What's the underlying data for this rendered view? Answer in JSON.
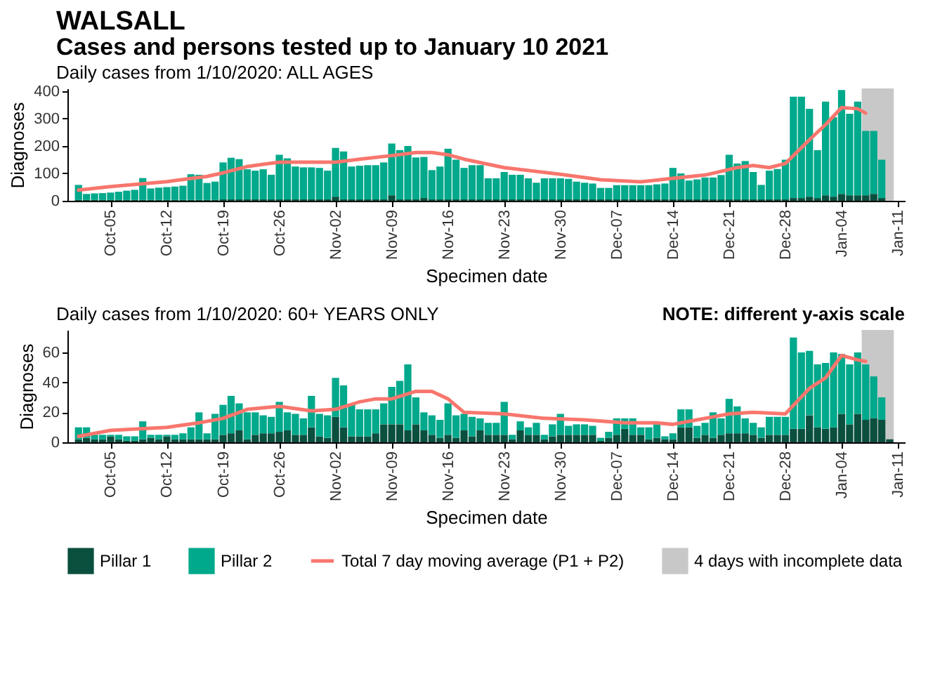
{
  "chart_data": [
    {
      "type": "bar",
      "title": "WALSALL",
      "subtitle": "Cases and persons tested up to January 10 2021",
      "annotations": [
        "Daily cases from 1/10/2020: ALL AGES"
      ],
      "xlabel": "Specimen date",
      "ylabel": "Diagnoses",
      "stacked": true,
      "x": [
        "2020-10-01",
        "2020-10-02",
        "2020-10-03",
        "2020-10-04",
        "2020-10-05",
        "2020-10-06",
        "2020-10-07",
        "2020-10-08",
        "2020-10-09",
        "2020-10-10",
        "2020-10-11",
        "2020-10-12",
        "2020-10-13",
        "2020-10-14",
        "2020-10-15",
        "2020-10-16",
        "2020-10-17",
        "2020-10-18",
        "2020-10-19",
        "2020-10-20",
        "2020-10-21",
        "2020-10-22",
        "2020-10-23",
        "2020-10-24",
        "2020-10-25",
        "2020-10-26",
        "2020-10-27",
        "2020-10-28",
        "2020-10-29",
        "2020-10-30",
        "2020-10-31",
        "2020-11-01",
        "2020-11-02",
        "2020-11-03",
        "2020-11-04",
        "2020-11-05",
        "2020-11-06",
        "2020-11-07",
        "2020-11-08",
        "2020-11-09",
        "2020-11-10",
        "2020-11-11",
        "2020-11-12",
        "2020-11-13",
        "2020-11-14",
        "2020-11-15",
        "2020-11-16",
        "2020-11-17",
        "2020-11-18",
        "2020-11-19",
        "2020-11-20",
        "2020-11-21",
        "2020-11-22",
        "2020-11-23",
        "2020-11-24",
        "2020-11-25",
        "2020-11-26",
        "2020-11-27",
        "2020-11-28",
        "2020-11-29",
        "2020-11-30",
        "2020-12-01",
        "2020-12-02",
        "2020-12-03",
        "2020-12-04",
        "2020-12-05",
        "2020-12-06",
        "2020-12-07",
        "2020-12-08",
        "2020-12-09",
        "2020-12-10",
        "2020-12-11",
        "2020-12-12",
        "2020-12-13",
        "2020-12-14",
        "2020-12-15",
        "2020-12-16",
        "2020-12-17",
        "2020-12-18",
        "2020-12-19",
        "2020-12-20",
        "2020-12-21",
        "2020-12-22",
        "2020-12-23",
        "2020-12-24",
        "2020-12-25",
        "2020-12-26",
        "2020-12-27",
        "2020-12-28",
        "2020-12-29",
        "2020-12-30",
        "2020-12-31",
        "2021-01-01",
        "2021-01-02",
        "2021-01-03",
        "2021-01-04",
        "2021-01-05",
        "2021-01-06",
        "2021-01-07",
        "2021-01-08",
        "2021-01-09"
      ],
      "legend": "bottom",
      "series": [
        {
          "name": "Pillar 1",
          "color": "#0b4f3f",
          "values": [
            3,
            3,
            3,
            3,
            3,
            3,
            3,
            3,
            3,
            3,
            3,
            3,
            3,
            3,
            3,
            3,
            3,
            3,
            5,
            5,
            5,
            5,
            5,
            5,
            5,
            5,
            5,
            5,
            5,
            5,
            5,
            5,
            15,
            5,
            5,
            5,
            5,
            5,
            5,
            20,
            5,
            5,
            5,
            10,
            5,
            5,
            5,
            5,
            5,
            5,
            5,
            5,
            5,
            5,
            5,
            5,
            5,
            5,
            5,
            5,
            5,
            5,
            5,
            5,
            5,
            5,
            5,
            5,
            5,
            5,
            5,
            5,
            5,
            5,
            5,
            5,
            5,
            5,
            5,
            5,
            5,
            5,
            5,
            5,
            5,
            5,
            5,
            5,
            5,
            10,
            10,
            15,
            10,
            20,
            15,
            25,
            20,
            20,
            20,
            25,
            10
          ]
        },
        {
          "name": "Pillar 2",
          "color": "#00a98b",
          "values": [
            55,
            22,
            24,
            25,
            27,
            30,
            34,
            37,
            80,
            42,
            45,
            47,
            49,
            52,
            94,
            92,
            62,
            67,
            135,
            152,
            147,
            110,
            105,
            110,
            90,
            163,
            150,
            120,
            117,
            117,
            115,
            105,
            178,
            175,
            120,
            123,
            125,
            125,
            135,
            189,
            180,
            195,
            153,
            150,
            107,
            120,
            185,
            145,
            115,
            125,
            125,
            77,
            77,
            100,
            90,
            90,
            77,
            61,
            77,
            77,
            77,
            75,
            65,
            61,
            58,
            42,
            42,
            52,
            52,
            52,
            52,
            52,
            55,
            58,
            115,
            95,
            69,
            73,
            80,
            80,
            89,
            163,
            131,
            140,
            100,
            53,
            105,
            111,
            145,
            370,
            370,
            321,
            175,
            342,
            290,
            379,
            298,
            342,
            235,
            230,
            140
          ]
        },
        {
          "name": "Total 7 day moving average (P1 + P2)",
          "type": "line",
          "color": "#f8766d",
          "x": [
            "2020-10-01",
            "2020-10-05",
            "2020-10-12",
            "2020-10-17",
            "2020-10-19",
            "2020-10-22",
            "2020-10-24",
            "2020-10-26",
            "2020-11-02",
            "2020-11-05",
            "2020-11-09",
            "2020-11-12",
            "2020-11-14",
            "2020-11-16",
            "2020-11-18",
            "2020-11-23",
            "2020-11-30",
            "2020-12-05",
            "2020-12-10",
            "2020-12-14",
            "2020-12-18",
            "2020-12-22",
            "2020-12-24",
            "2020-12-26",
            "2020-12-28",
            "2020-12-31",
            "2021-01-02",
            "2021-01-04",
            "2021-01-06",
            "2021-01-07"
          ],
          "values": [
            39,
            52,
            70,
            89,
            102,
            125,
            133,
            141,
            141,
            152,
            165,
            176,
            176,
            168,
            152,
            121,
            97,
            77,
            69,
            82,
            94,
            121,
            129,
            121,
            136,
            223,
            278,
            340,
            336,
            320
          ]
        }
      ],
      "bands": [
        {
          "axis": "x",
          "from": "2021-01-06T12:00",
          "to": "2021-01-10T12:00",
          "color": "#c8c8c8"
        }
      ],
      "xlim": [
        "2020-09-30T12:00",
        "2021-01-11"
      ],
      "xticks": [
        {
          "value": "2020-10-05",
          "label": "Oct-05"
        },
        {
          "value": "2020-10-12",
          "label": "Oct-12"
        },
        {
          "value": "2020-10-19",
          "label": "Oct-19"
        },
        {
          "value": "2020-10-26",
          "label": "Oct-26"
        },
        {
          "value": "2020-11-02",
          "label": "Nov-02"
        },
        {
          "value": "2020-11-09",
          "label": "Nov-09"
        },
        {
          "value": "2020-11-16",
          "label": "Nov-16"
        },
        {
          "value": "2020-11-23",
          "label": "Nov-23"
        },
        {
          "value": "2020-11-30",
          "label": "Nov-30"
        },
        {
          "value": "2020-12-07",
          "label": "Dec-07"
        },
        {
          "value": "2020-12-14",
          "label": "Dec-14"
        },
        {
          "value": "2020-12-21",
          "label": "Dec-21"
        },
        {
          "value": "2020-12-28",
          "label": "Dec-28"
        },
        {
          "value": "2021-01-04",
          "label": "Jan-04"
        },
        {
          "value": "2021-01-11",
          "label": "Jan-11"
        }
      ],
      "ylim": [
        0,
        410
      ],
      "yticks": [
        0,
        100,
        200,
        300,
        400
      ]
    },
    {
      "type": "bar",
      "title": "Daily cases from 1/10/2020: 60+ YEARS ONLY",
      "annotations": [
        "NOTE: different y-axis scale"
      ],
      "xlabel": "Specimen date",
      "ylabel": "Diagnoses",
      "stacked": true,
      "legend": "bottom",
      "x": [
        "2020-10-01",
        "2020-10-02",
        "2020-10-03",
        "2020-10-04",
        "2020-10-05",
        "2020-10-06",
        "2020-10-07",
        "2020-10-08",
        "2020-10-09",
        "2020-10-10",
        "2020-10-11",
        "2020-10-12",
        "2020-10-13",
        "2020-10-14",
        "2020-10-15",
        "2020-10-16",
        "2020-10-17",
        "2020-10-18",
        "2020-10-19",
        "2020-10-20",
        "2020-10-21",
        "2020-10-22",
        "2020-10-23",
        "2020-10-24",
        "2020-10-25",
        "2020-10-26",
        "2020-10-27",
        "2020-10-28",
        "2020-10-29",
        "2020-10-30",
        "2020-10-31",
        "2020-11-01",
        "2020-11-02",
        "2020-11-03",
        "2020-11-04",
        "2020-11-05",
        "2020-11-06",
        "2020-11-07",
        "2020-11-08",
        "2020-11-09",
        "2020-11-10",
        "2020-11-11",
        "2020-11-12",
        "2020-11-13",
        "2020-11-14",
        "2020-11-15",
        "2020-11-16",
        "2020-11-17",
        "2020-11-18",
        "2020-11-19",
        "2020-11-20",
        "2020-11-21",
        "2020-11-22",
        "2020-11-23",
        "2020-11-24",
        "2020-11-25",
        "2020-11-26",
        "2020-11-27",
        "2020-11-28",
        "2020-11-29",
        "2020-11-30",
        "2020-12-01",
        "2020-12-02",
        "2020-12-03",
        "2020-12-04",
        "2020-12-05",
        "2020-12-06",
        "2020-12-07",
        "2020-12-08",
        "2020-12-09",
        "2020-12-10",
        "2020-12-11",
        "2020-12-12",
        "2020-12-13",
        "2020-12-14",
        "2020-12-15",
        "2020-12-16",
        "2020-12-17",
        "2020-12-18",
        "2020-12-19",
        "2020-12-20",
        "2020-12-21",
        "2020-12-22",
        "2020-12-23",
        "2020-12-24",
        "2020-12-25",
        "2020-12-26",
        "2020-12-27",
        "2020-12-28",
        "2020-12-29",
        "2020-12-30",
        "2020-12-31",
        "2021-01-01",
        "2021-01-02",
        "2021-01-03",
        "2021-01-04",
        "2021-01-05",
        "2021-01-06",
        "2021-01-07",
        "2021-01-08",
        "2021-01-09",
        "2021-01-10"
      ],
      "series": [
        {
          "name": "Pillar 1",
          "color": "#0b4f3f",
          "values": [
            2,
            3,
            2,
            2,
            4,
            2,
            1,
            1,
            2,
            3,
            2,
            4,
            2,
            2,
            2,
            2,
            2,
            2,
            5,
            6,
            8,
            2,
            5,
            6,
            6,
            7,
            8,
            5,
            5,
            10,
            4,
            3,
            17,
            10,
            4,
            4,
            4,
            6,
            12,
            12,
            12,
            8,
            12,
            8,
            5,
            3,
            5,
            3,
            8,
            4,
            8,
            5,
            5,
            5,
            2,
            8,
            5,
            5,
            2,
            4,
            5,
            5,
            5,
            5,
            5,
            1,
            3,
            5,
            9,
            5,
            5,
            2,
            3,
            2,
            2,
            10,
            10,
            3,
            5,
            3,
            5,
            6,
            6,
            6,
            5,
            3,
            5,
            5,
            5,
            9,
            9,
            18,
            10,
            9,
            10,
            19,
            12,
            19,
            15,
            16,
            15,
            2
          ]
        },
        {
          "name": "Pillar 2",
          "color": "#00a98b",
          "values": [
            8,
            7,
            3,
            3,
            1,
            3,
            3,
            3,
            12,
            2,
            3,
            1,
            3,
            4,
            8,
            18,
            4,
            17,
            20,
            25,
            18,
            18,
            15,
            12,
            11,
            20,
            12,
            14,
            11,
            21,
            15,
            15,
            26,
            28,
            21,
            18,
            18,
            16,
            14,
            25,
            29,
            44,
            18,
            12,
            13,
            12,
            21,
            15,
            11,
            13,
            8,
            8,
            8,
            22,
            3,
            6,
            5,
            8,
            3,
            8,
            14,
            6,
            7,
            7,
            6,
            2,
            4,
            11,
            7,
            11,
            5,
            8,
            9,
            2,
            4,
            12,
            12,
            8,
            8,
            17,
            11,
            23,
            18,
            10,
            8,
            7,
            12,
            12,
            12,
            61,
            51,
            43,
            42,
            44,
            50,
            40,
            40,
            41,
            37,
            28,
            15,
            0
          ]
        },
        {
          "name": "Total 7 day moving average (P1 + P2)",
          "type": "line",
          "color": "#f8766d",
          "x": [
            "2020-10-01",
            "2020-10-05",
            "2020-10-12",
            "2020-10-16",
            "2020-10-19",
            "2020-10-22",
            "2020-10-26",
            "2020-10-30",
            "2020-11-02",
            "2020-11-05",
            "2020-11-07",
            "2020-11-09",
            "2020-11-12",
            "2020-11-14",
            "2020-11-16",
            "2020-11-18",
            "2020-11-23",
            "2020-11-28",
            "2020-12-03",
            "2020-12-08",
            "2020-12-12",
            "2020-12-14",
            "2020-12-17",
            "2020-12-21",
            "2020-12-24",
            "2020-12-28",
            "2020-12-31",
            "2021-01-02",
            "2021-01-04",
            "2021-01-06",
            "2021-01-07"
          ],
          "values": [
            4,
            8,
            10,
            13,
            16,
            22,
            24,
            21,
            22,
            27,
            29,
            29,
            34,
            34,
            29,
            20,
            19,
            16,
            15,
            13,
            13,
            12,
            15,
            19,
            20,
            19,
            36,
            43,
            58,
            55,
            54
          ]
        }
      ],
      "bands": [
        {
          "axis": "x",
          "from": "2021-01-06T12:00",
          "to": "2021-01-10T12:00",
          "label": "4 days with incomplete data",
          "color": "#c8c8c8"
        }
      ],
      "xlim": [
        "2020-09-30T12:00",
        "2021-01-11"
      ],
      "xticks": [
        {
          "value": "2020-10-05",
          "label": "Oct-05"
        },
        {
          "value": "2020-10-12",
          "label": "Oct-12"
        },
        {
          "value": "2020-10-19",
          "label": "Oct-19"
        },
        {
          "value": "2020-10-26",
          "label": "Oct-26"
        },
        {
          "value": "2020-11-02",
          "label": "Nov-02"
        },
        {
          "value": "2020-11-09",
          "label": "Nov-09"
        },
        {
          "value": "2020-11-16",
          "label": "Nov-16"
        },
        {
          "value": "2020-11-23",
          "label": "Nov-23"
        },
        {
          "value": "2020-11-30",
          "label": "Nov-30"
        },
        {
          "value": "2020-12-07",
          "label": "Dec-07"
        },
        {
          "value": "2020-12-14",
          "label": "Dec-14"
        },
        {
          "value": "2020-12-21",
          "label": "Dec-21"
        },
        {
          "value": "2020-12-28",
          "label": "Dec-28"
        },
        {
          "value": "2021-01-04",
          "label": "Jan-04"
        },
        {
          "value": "2021-01-11",
          "label": "Jan-11"
        }
      ],
      "ylim": [
        0,
        75
      ],
      "yticks": [
        0,
        20,
        40,
        60
      ]
    }
  ]
}
